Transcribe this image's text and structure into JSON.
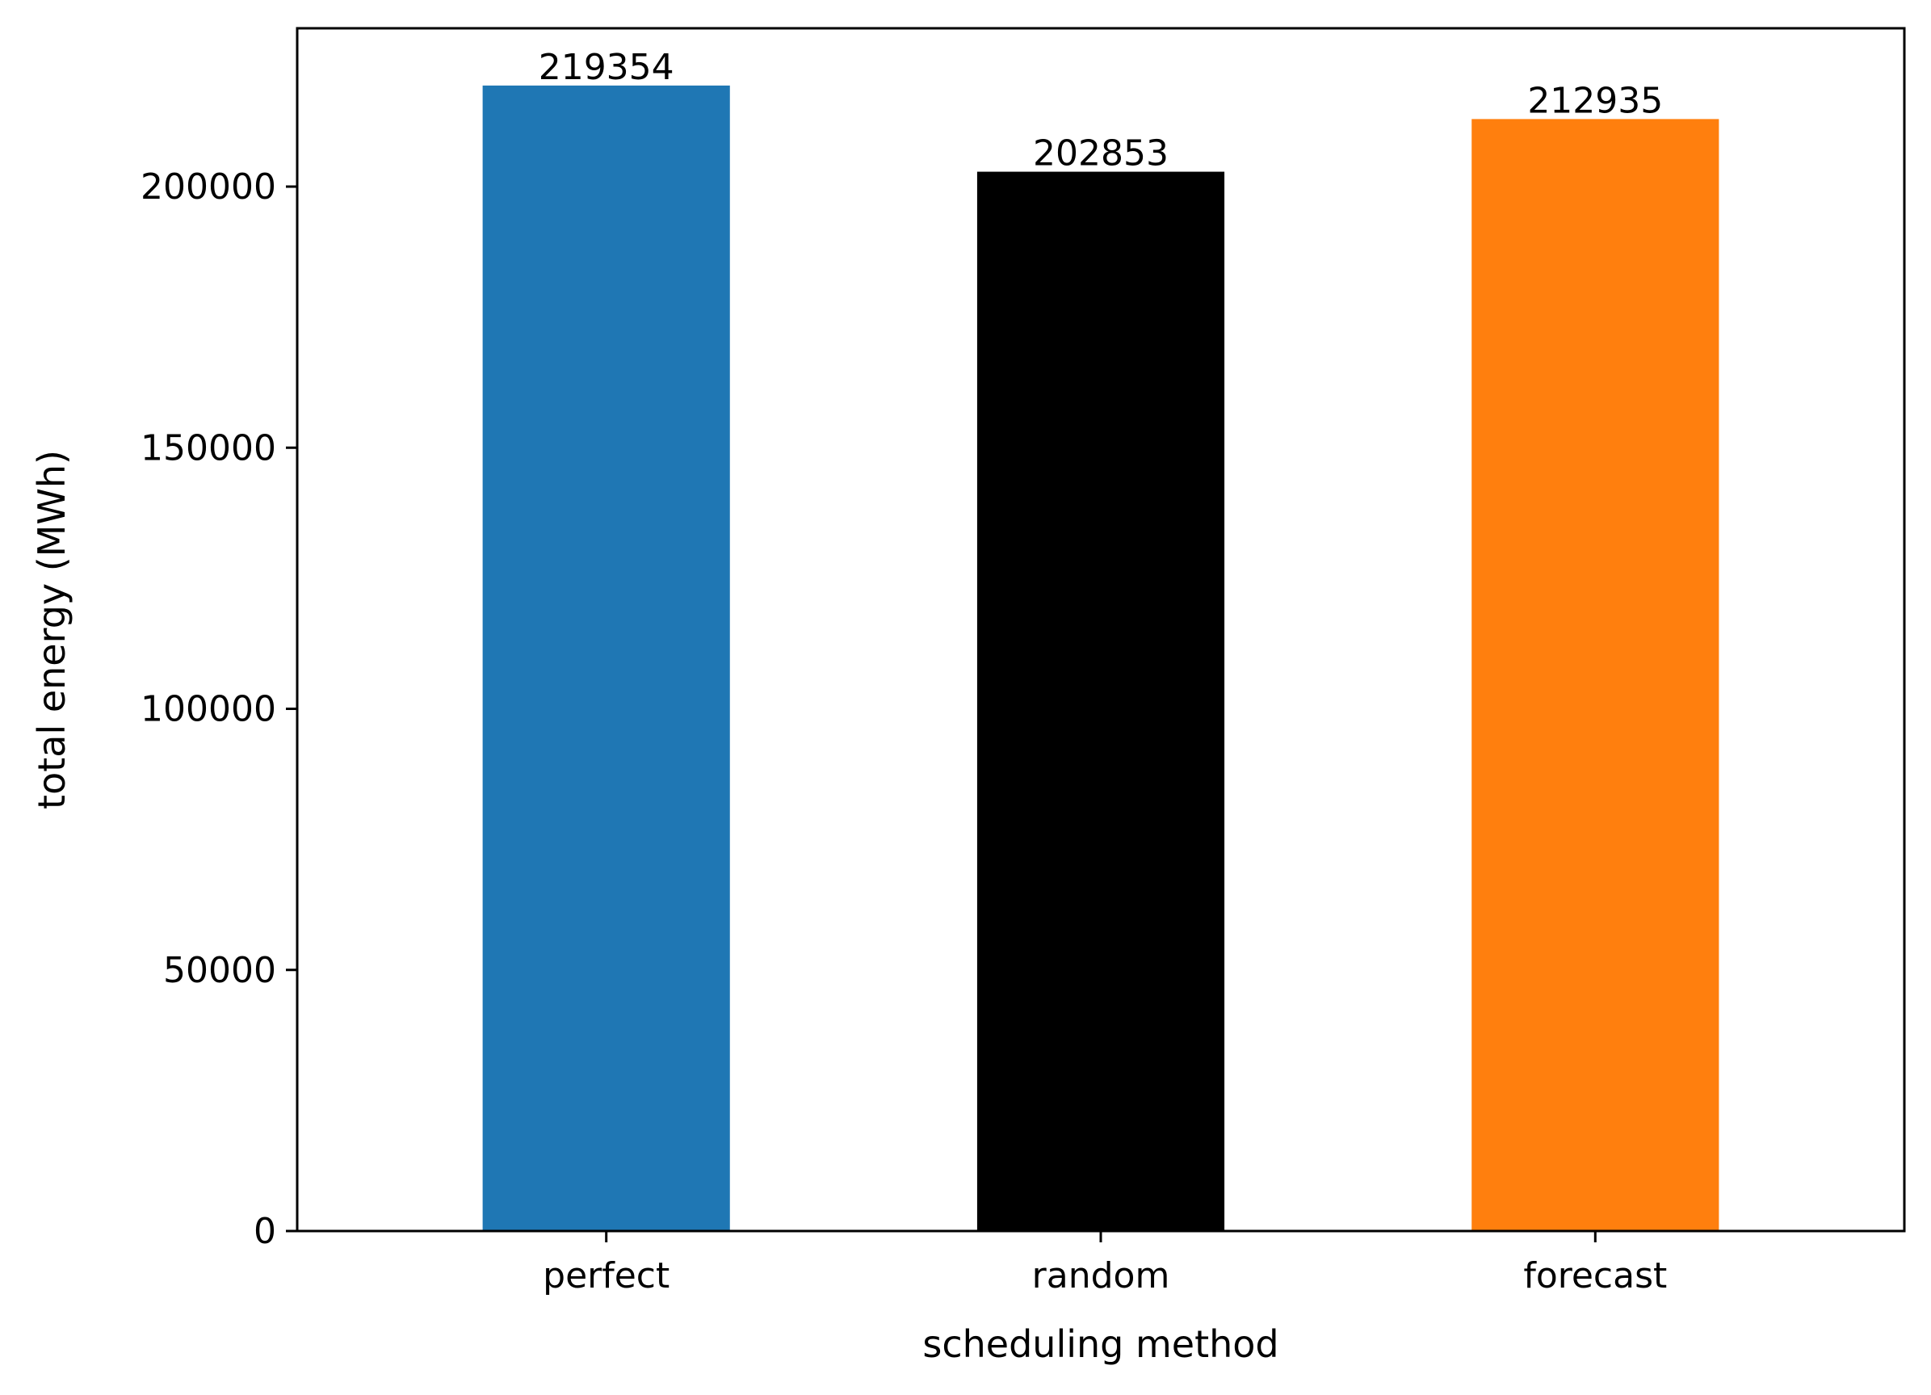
{
  "chart_data": {
    "type": "bar",
    "categories": [
      "perfect",
      "random",
      "forecast"
    ],
    "values": [
      219354,
      202853,
      212935
    ],
    "data_labels": [
      "219354",
      "202853",
      "212935"
    ],
    "colors": [
      "#1f77b4",
      "#000000",
      "#ff7f0e"
    ],
    "title": "",
    "xlabel": "scheduling method",
    "ylabel": "total energy (MWh)",
    "ylim": [
      0,
      230320
    ],
    "yticks": [
      0,
      50000,
      100000,
      150000,
      200000
    ],
    "ytick_labels": [
      "0",
      "50000",
      "100000",
      "150000",
      "200000"
    ],
    "grid": false,
    "legend": "none"
  }
}
